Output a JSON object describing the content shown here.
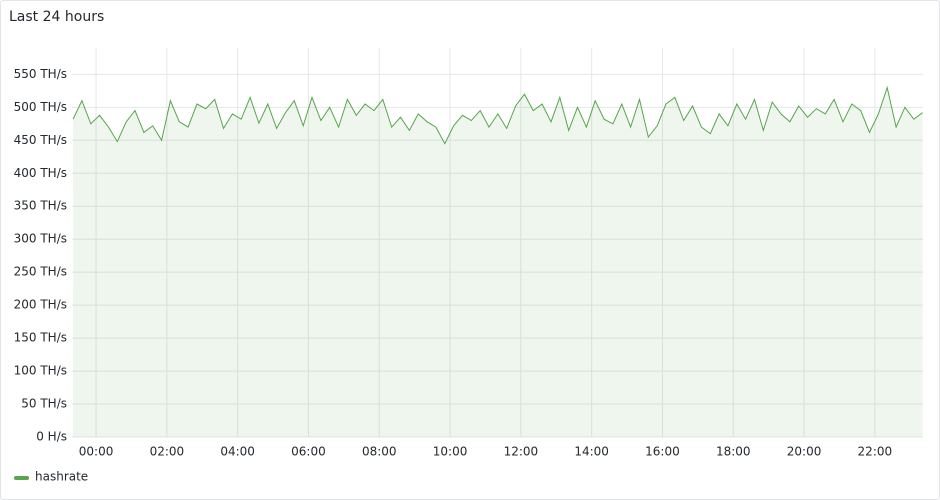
{
  "chart_data": {
    "type": "line",
    "title": "Last 24 hours",
    "x": [
      -0.65,
      -0.4,
      -0.15,
      0.1,
      0.35,
      0.6,
      0.85,
      1.1,
      1.35,
      1.6,
      1.85,
      2.1,
      2.35,
      2.6,
      2.85,
      3.1,
      3.35,
      3.6,
      3.85,
      4.1,
      4.35,
      4.6,
      4.85,
      5.1,
      5.35,
      5.6,
      5.85,
      6.1,
      6.35,
      6.6,
      6.85,
      7.1,
      7.35,
      7.6,
      7.85,
      8.1,
      8.35,
      8.6,
      8.85,
      9.1,
      9.35,
      9.6,
      9.85,
      10.1,
      10.35,
      10.6,
      10.85,
      11.1,
      11.35,
      11.6,
      11.85,
      12.1,
      12.35,
      12.6,
      12.85,
      13.1,
      13.35,
      13.6,
      13.85,
      14.1,
      14.35,
      14.6,
      14.85,
      15.1,
      15.35,
      15.6,
      15.85,
      16.1,
      16.35,
      16.6,
      16.85,
      17.1,
      17.35,
      17.6,
      17.85,
      18.1,
      18.35,
      18.6,
      18.85,
      19.1,
      19.35,
      19.6,
      19.85,
      20.1,
      20.35,
      20.6,
      20.85,
      21.1,
      21.35,
      21.6,
      21.85,
      22.1,
      22.35,
      22.6,
      22.85,
      23.1,
      23.35
    ],
    "series": [
      {
        "name": "hashrate",
        "color": "#56a64b",
        "values": [
          482,
          510,
          475,
          488,
          470,
          448,
          478,
          495,
          462,
          472,
          450,
          510,
          478,
          470,
          505,
          498,
          512,
          468,
          490,
          482,
          515,
          476,
          505,
          468,
          492,
          510,
          472,
          515,
          480,
          500,
          470,
          512,
          488,
          505,
          495,
          512,
          470,
          485,
          465,
          490,
          478,
          470,
          445,
          472,
          488,
          480,
          495,
          470,
          490,
          468,
          502,
          520,
          495,
          505,
          478,
          515,
          465,
          500,
          470,
          510,
          482,
          475,
          505,
          470,
          512,
          455,
          472,
          505,
          515,
          480,
          502,
          470,
          460,
          490,
          472,
          505,
          482,
          512,
          465,
          508,
          490,
          478,
          502,
          485,
          498,
          490,
          512,
          478,
          505,
          495,
          462,
          490,
          530,
          470,
          500,
          482,
          492
        ]
      }
    ],
    "xlim": [
      -0.68,
      23.36
    ],
    "xticks": [
      {
        "value": 0,
        "label": "00:00"
      },
      {
        "value": 2,
        "label": "02:00"
      },
      {
        "value": 4,
        "label": "04:00"
      },
      {
        "value": 6,
        "label": "06:00"
      },
      {
        "value": 8,
        "label": "08:00"
      },
      {
        "value": 10,
        "label": "10:00"
      },
      {
        "value": 12,
        "label": "12:00"
      },
      {
        "value": 14,
        "label": "14:00"
      },
      {
        "value": 16,
        "label": "16:00"
      },
      {
        "value": 18,
        "label": "18:00"
      },
      {
        "value": 20,
        "label": "20:00"
      },
      {
        "value": 22,
        "label": "22:00"
      }
    ],
    "ylim": [
      0,
      590
    ],
    "yticks": [
      {
        "value": 0,
        "label": "0 H/s"
      },
      {
        "value": 50,
        "label": "50 TH/s"
      },
      {
        "value": 100,
        "label": "100 TH/s"
      },
      {
        "value": 150,
        "label": "150 TH/s"
      },
      {
        "value": 200,
        "label": "200 TH/s"
      },
      {
        "value": 250,
        "label": "250 TH/s"
      },
      {
        "value": 300,
        "label": "300 TH/s"
      },
      {
        "value": 350,
        "label": "350 TH/s"
      },
      {
        "value": 400,
        "label": "400 TH/s"
      },
      {
        "value": 450,
        "label": "450 TH/s"
      },
      {
        "value": 500,
        "label": "500 TH/s"
      },
      {
        "value": 550,
        "label": "550 TH/s"
      }
    ],
    "grid": true,
    "area_fill": true
  }
}
